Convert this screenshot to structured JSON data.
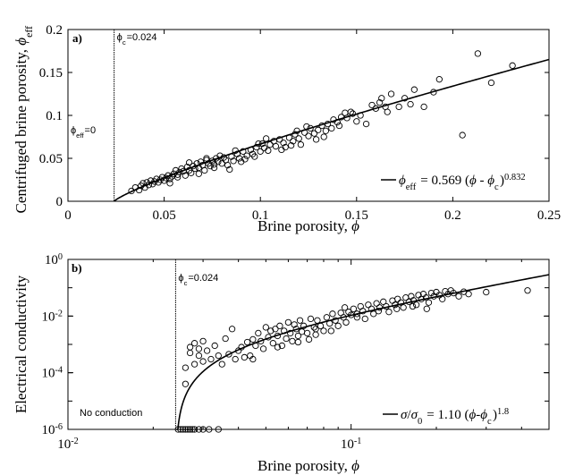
{
  "chart_data": [
    {
      "type": "scatter",
      "panel_label": "a)",
      "xlabel": "Brine porosity, ",
      "xlabel_symbol": "ϕ",
      "ylabel": "Centrifuged brine porosity, ",
      "ylabel_symbol": "ϕ",
      "ylabel_sub": "eff",
      "xlim": [
        0,
        0.25
      ],
      "ylim": [
        0,
        0.2
      ],
      "xticks": [
        0,
        0.05,
        0.1,
        0.15,
        0.2,
        0.25
      ],
      "xtick_labels": [
        "0",
        "0.05",
        "0.1",
        "0.15",
        "0.2",
        "0.25"
      ],
      "yticks": [
        0,
        0.05,
        0.1,
        0.15,
        0.2
      ],
      "ytick_labels": [
        "0",
        "0.05",
        "0.1",
        "0.15",
        "0.2"
      ],
      "threshold": {
        "x": 0.024,
        "sym": "ϕ",
        "sub": "c",
        "label": "=0.024"
      },
      "side_annotation": {
        "sym": "ϕ",
        "sub": "eff",
        "label": "=0"
      },
      "fit": {
        "a": 0.569,
        "xc": 0.024,
        "b": 0.832
      },
      "legend": {
        "sym": "ϕ",
        "sub": "eff",
        "eq": " = 0.569 (",
        "sym2": "ϕ",
        "mid": " - ",
        "sym3": "ϕ",
        "sub3": "c",
        "close": ")",
        "exp": "0.832"
      },
      "points": [
        [
          0.033,
          0.012
        ],
        [
          0.035,
          0.016
        ],
        [
          0.037,
          0.013
        ],
        [
          0.038,
          0.018
        ],
        [
          0.039,
          0.021
        ],
        [
          0.04,
          0.016
        ],
        [
          0.041,
          0.022
        ],
        [
          0.042,
          0.019
        ],
        [
          0.043,
          0.024
        ],
        [
          0.044,
          0.02
        ],
        [
          0.045,
          0.023
        ],
        [
          0.046,
          0.026
        ],
        [
          0.047,
          0.022
        ],
        [
          0.048,
          0.025
        ],
        [
          0.049,
          0.028
        ],
        [
          0.05,
          0.024
        ],
        [
          0.051,
          0.027
        ],
        [
          0.052,
          0.03
        ],
        [
          0.053,
          0.026
        ],
        [
          0.054,
          0.029
        ],
        [
          0.055,
          0.032
        ],
        [
          0.056,
          0.036
        ],
        [
          0.057,
          0.031
        ],
        [
          0.058,
          0.034
        ],
        [
          0.059,
          0.038
        ],
        [
          0.06,
          0.035
        ],
        [
          0.061,
          0.03
        ],
        [
          0.062,
          0.04
        ],
        [
          0.063,
          0.036
        ],
        [
          0.064,
          0.033
        ],
        [
          0.065,
          0.041
        ],
        [
          0.066,
          0.038
        ],
        [
          0.067,
          0.044
        ],
        [
          0.068,
          0.039
        ],
        [
          0.069,
          0.046
        ],
        [
          0.07,
          0.042
        ],
        [
          0.071,
          0.036
        ],
        [
          0.072,
          0.048
        ],
        [
          0.073,
          0.044
        ],
        [
          0.074,
          0.041
        ],
        [
          0.075,
          0.047
        ],
        [
          0.076,
          0.043
        ],
        [
          0.077,
          0.05
        ],
        [
          0.078,
          0.046
        ],
        [
          0.08,
          0.044
        ],
        [
          0.081,
          0.051
        ],
        [
          0.082,
          0.048
        ],
        [
          0.083,
          0.042
        ],
        [
          0.085,
          0.052
        ],
        [
          0.086,
          0.047
        ],
        [
          0.088,
          0.055
        ],
        [
          0.089,
          0.05
        ],
        [
          0.09,
          0.046
        ],
        [
          0.091,
          0.058
        ],
        [
          0.093,
          0.053
        ],
        [
          0.095,
          0.06
        ],
        [
          0.096,
          0.055
        ],
        [
          0.098,
          0.063
        ],
        [
          0.1,
          0.058
        ],
        [
          0.101,
          0.067
        ],
        [
          0.102,
          0.062
        ],
        [
          0.104,
          0.059
        ],
        [
          0.105,
          0.066
        ],
        [
          0.107,
          0.07
        ],
        [
          0.108,
          0.064
        ],
        [
          0.11,
          0.072
        ],
        [
          0.112,
          0.068
        ],
        [
          0.113,
          0.063
        ],
        [
          0.115,
          0.074
        ],
        [
          0.117,
          0.07
        ],
        [
          0.118,
          0.078
        ],
        [
          0.12,
          0.073
        ],
        [
          0.121,
          0.066
        ],
        [
          0.123,
          0.08
        ],
        [
          0.125,
          0.076
        ],
        [
          0.126,
          0.085
        ],
        [
          0.128,
          0.079
        ],
        [
          0.13,
          0.083
        ],
        [
          0.132,
          0.088
        ],
        [
          0.133,
          0.075
        ],
        [
          0.135,
          0.09
        ],
        [
          0.137,
          0.085
        ],
        [
          0.138,
          0.095
        ],
        [
          0.14,
          0.092
        ],
        [
          0.142,
          0.098
        ],
        [
          0.144,
          0.103
        ],
        [
          0.145,
          0.097
        ],
        [
          0.147,
          0.104
        ],
        [
          0.15,
          0.093
        ],
        [
          0.152,
          0.1
        ],
        [
          0.155,
          0.09
        ],
        [
          0.16,
          0.108
        ],
        [
          0.162,
          0.115
        ],
        [
          0.163,
          0.12
        ],
        [
          0.165,
          0.11
        ],
        [
          0.168,
          0.125
        ],
        [
          0.172,
          0.11
        ],
        [
          0.175,
          0.12
        ],
        [
          0.178,
          0.113
        ],
        [
          0.18,
          0.13
        ],
        [
          0.185,
          0.11
        ],
        [
          0.19,
          0.127
        ],
        [
          0.193,
          0.142
        ],
        [
          0.205,
          0.077
        ],
        [
          0.213,
          0.172
        ],
        [
          0.22,
          0.138
        ],
        [
          0.231,
          0.158
        ],
        [
          0.057,
          0.028
        ],
        [
          0.063,
          0.045
        ],
        [
          0.072,
          0.05
        ],
        [
          0.079,
          0.053
        ],
        [
          0.084,
          0.037
        ],
        [
          0.092,
          0.049
        ],
        [
          0.097,
          0.052
        ],
        [
          0.103,
          0.073
        ],
        [
          0.111,
          0.06
        ],
        [
          0.116,
          0.065
        ],
        [
          0.124,
          0.087
        ],
        [
          0.134,
          0.082
        ],
        [
          0.141,
          0.088
        ],
        [
          0.148,
          0.102
        ],
        [
          0.158,
          0.112
        ],
        [
          0.166,
          0.104
        ],
        [
          0.053,
          0.021
        ],
        [
          0.068,
          0.032
        ],
        [
          0.076,
          0.039
        ],
        [
          0.087,
          0.059
        ],
        [
          0.099,
          0.067
        ],
        [
          0.119,
          0.082
        ],
        [
          0.129,
          0.072
        ]
      ]
    },
    {
      "type": "scatter",
      "panel_label": "b)",
      "xlabel": "Brine porosity, ",
      "xlabel_symbol": "ϕ",
      "ylabel": "Electrical conductivity",
      "xscale": "log",
      "yscale": "log",
      "xlim": [
        0.01,
        0.5
      ],
      "ylim": [
        1e-06,
        1
      ],
      "xticks": [
        0.01,
        0.1
      ],
      "xtick_labels": [
        {
          "base": "10",
          "exp": "-2"
        },
        {
          "base": "10",
          "exp": "-1"
        }
      ],
      "yticks": [
        1e-06,
        0.0001,
        0.01,
        1
      ],
      "ytick_labels": [
        {
          "base": "10",
          "exp": "-6"
        },
        {
          "base": "10",
          "exp": "-4"
        },
        {
          "base": "10",
          "exp": "-2"
        },
        {
          "base": "10",
          "exp": "0"
        }
      ],
      "threshold": {
        "x": 0.024,
        "sym": "ϕ",
        "sub": "c",
        "label": "=0.024"
      },
      "side_annotation": {
        "label": "No conduction"
      },
      "fit": {
        "a": 1.1,
        "xc": 0.024,
        "b": 1.8
      },
      "legend": {
        "sym": "σ",
        "mid0": "/",
        "sym0": "σ",
        "sub0": "0",
        "eq": " = 1.10  (",
        "sym2": "ϕ",
        "mid": "-",
        "sym3": "ϕ",
        "sub3": "c",
        "close": ")",
        "exp": "1.8"
      },
      "points": [
        [
          0.0245,
          1e-06
        ],
        [
          0.025,
          1e-06
        ],
        [
          0.0255,
          1e-06
        ],
        [
          0.026,
          1e-06
        ],
        [
          0.0265,
          1e-06
        ],
        [
          0.027,
          1e-06
        ],
        [
          0.0275,
          1e-06
        ],
        [
          0.028,
          1e-06
        ],
        [
          0.029,
          1e-06
        ],
        [
          0.03,
          1e-06
        ],
        [
          0.0315,
          1e-06
        ],
        [
          0.034,
          1e-06
        ],
        [
          0.026,
          4e-05
        ],
        [
          0.026,
          0.00015
        ],
        [
          0.027,
          0.0005
        ],
        [
          0.027,
          0.0008
        ],
        [
          0.028,
          0.0002
        ],
        [
          0.028,
          0.0011
        ],
        [
          0.029,
          0.0004
        ],
        [
          0.029,
          0.0007
        ],
        [
          0.03,
          0.0013
        ],
        [
          0.03,
          0.00025
        ],
        [
          0.031,
          0.0006
        ],
        [
          0.032,
          0.0003
        ],
        [
          0.033,
          0.0009
        ],
        [
          0.034,
          0.0004
        ],
        [
          0.035,
          0.0002
        ],
        [
          0.036,
          0.0016
        ],
        [
          0.037,
          0.00045
        ],
        [
          0.038,
          0.0035
        ],
        [
          0.039,
          0.0003
        ],
        [
          0.04,
          0.0006
        ],
        [
          0.041,
          0.0008
        ],
        [
          0.042,
          0.00035
        ],
        [
          0.043,
          0.0012
        ],
        [
          0.044,
          0.0004
        ],
        [
          0.045,
          0.0015
        ],
        [
          0.046,
          0.0009
        ],
        [
          0.047,
          0.0025
        ],
        [
          0.048,
          0.0013
        ],
        [
          0.049,
          0.0007
        ],
        [
          0.05,
          0.004
        ],
        [
          0.051,
          0.0018
        ],
        [
          0.052,
          0.003
        ],
        [
          0.053,
          0.0011
        ],
        [
          0.054,
          0.0035
        ],
        [
          0.055,
          0.002
        ],
        [
          0.056,
          0.0045
        ],
        [
          0.057,
          0.0009
        ],
        [
          0.058,
          0.003
        ],
        [
          0.059,
          0.0016
        ],
        [
          0.06,
          0.006
        ],
        [
          0.061,
          0.0025
        ],
        [
          0.062,
          0.0013
        ],
        [
          0.063,
          0.005
        ],
        [
          0.064,
          0.0035
        ],
        [
          0.065,
          0.002
        ],
        [
          0.066,
          0.007
        ],
        [
          0.067,
          0.0028
        ],
        [
          0.068,
          0.0045
        ],
        [
          0.07,
          0.0025
        ],
        [
          0.071,
          0.0015
        ],
        [
          0.072,
          0.008
        ],
        [
          0.074,
          0.004
        ],
        [
          0.075,
          0.0022
        ],
        [
          0.076,
          0.007
        ],
        [
          0.078,
          0.0045
        ],
        [
          0.08,
          0.003
        ],
        [
          0.082,
          0.009
        ],
        [
          0.084,
          0.0055
        ],
        [
          0.086,
          0.012
        ],
        [
          0.088,
          0.007
        ],
        [
          0.09,
          0.0045
        ],
        [
          0.092,
          0.013
        ],
        [
          0.094,
          0.009
        ],
        [
          0.096,
          0.006
        ],
        [
          0.098,
          0.014
        ],
        [
          0.1,
          0.011
        ],
        [
          0.102,
          0.018
        ],
        [
          0.105,
          0.012
        ],
        [
          0.108,
          0.022
        ],
        [
          0.11,
          0.015
        ],
        [
          0.112,
          0.008
        ],
        [
          0.115,
          0.025
        ],
        [
          0.118,
          0.018
        ],
        [
          0.12,
          0.012
        ],
        [
          0.123,
          0.028
        ],
        [
          0.126,
          0.02
        ],
        [
          0.13,
          0.032
        ],
        [
          0.133,
          0.022
        ],
        [
          0.136,
          0.014
        ],
        [
          0.14,
          0.035
        ],
        [
          0.143,
          0.025
        ],
        [
          0.146,
          0.04
        ],
        [
          0.15,
          0.03
        ],
        [
          0.153,
          0.02
        ],
        [
          0.156,
          0.045
        ],
        [
          0.16,
          0.032
        ],
        [
          0.163,
          0.05
        ],
        [
          0.166,
          0.036
        ],
        [
          0.17,
          0.025
        ],
        [
          0.173,
          0.055
        ],
        [
          0.177,
          0.04
        ],
        [
          0.18,
          0.06
        ],
        [
          0.184,
          0.045
        ],
        [
          0.188,
          0.03
        ],
        [
          0.192,
          0.065
        ],
        [
          0.196,
          0.05
        ],
        [
          0.2,
          0.07
        ],
        [
          0.205,
          0.055
        ],
        [
          0.21,
          0.04
        ],
        [
          0.215,
          0.075
        ],
        [
          0.22,
          0.06
        ],
        [
          0.225,
          0.08
        ],
        [
          0.23,
          0.065
        ],
        [
          0.24,
          0.05
        ],
        [
          0.25,
          0.072
        ],
        [
          0.26,
          0.06
        ],
        [
          0.3,
          0.07
        ],
        [
          0.42,
          0.08
        ],
        [
          0.045,
          0.0003
        ],
        [
          0.055,
          0.0008
        ],
        [
          0.065,
          0.0012
        ],
        [
          0.075,
          0.0035
        ],
        [
          0.085,
          0.003
        ],
        [
          0.095,
          0.02
        ],
        [
          0.105,
          0.009
        ],
        [
          0.125,
          0.015
        ],
        [
          0.145,
          0.018
        ],
        [
          0.165,
          0.022
        ],
        [
          0.185,
          0.018
        ]
      ]
    }
  ]
}
